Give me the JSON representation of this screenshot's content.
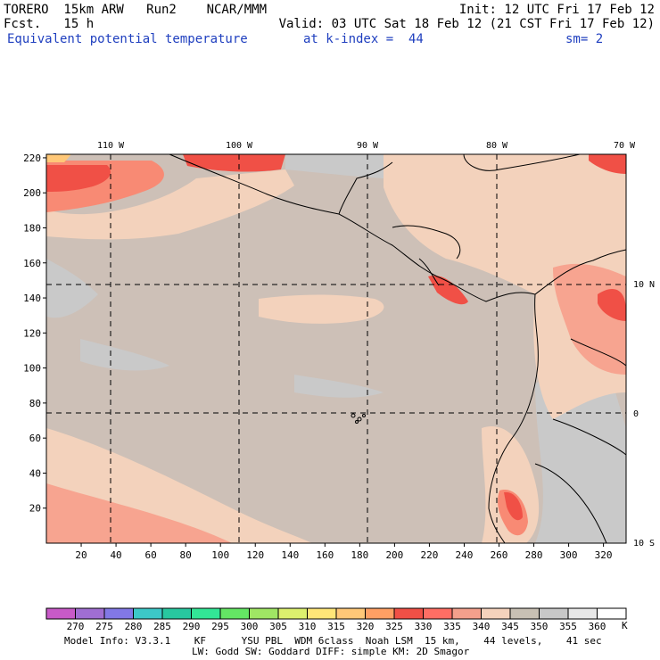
{
  "header": {
    "left_line1": "TORERO  15km ARW   Run2    NCAR/MMM",
    "left_line2": "Fcst.   15 h",
    "right_line1": "Init: 12 UTC Fri 17 Feb 12",
    "right_line2": "Valid: 03 UTC Sat 18 Feb 12 (21 CST Fri 17 Feb 12)",
    "field": "Equivalent potential temperature",
    "level": "at k-index =  44",
    "smoothing": "sm= 2"
  },
  "map": {
    "top_longitude_labels": [
      "110 W",
      "100 W",
      "90 W",
      "80 W",
      "70 W"
    ],
    "right_latitude_labels": [
      "10 N",
      "0",
      "10 S"
    ],
    "left_grid_labels": [
      "220",
      "200",
      "180",
      "160",
      "140",
      "120",
      "100",
      "80",
      "60",
      "40",
      "20"
    ],
    "bottom_grid_labels": [
      "20",
      "40",
      "60",
      "80",
      "100",
      "120",
      "140",
      "160",
      "180",
      "200",
      "220",
      "240",
      "260",
      "280",
      "300",
      "320"
    ],
    "x_grid_range": [
      0,
      333
    ],
    "y_grid_range": [
      0,
      222
    ],
    "background_color": "#cdc0b7"
  },
  "colorbar": {
    "levels": [
      "270",
      "275",
      "280",
      "285",
      "290",
      "295",
      "300",
      "305",
      "310",
      "315",
      "320",
      "325",
      "330",
      "335",
      "340",
      "345",
      "350",
      "355",
      "360"
    ],
    "unit": "K",
    "colors": [
      "#c85ac8",
      "#a06ed2",
      "#8278e6",
      "#3cc8c8",
      "#28c8a0",
      "#32e696",
      "#64e664",
      "#a0e664",
      "#dcf06e",
      "#ffe678",
      "#ffc878",
      "#ffa064",
      "#f05046",
      "#ff6e64",
      "#f4a08c",
      "#f5d2bc",
      "#c8c0b4",
      "#c8c8c8",
      "#e8e8e8",
      "#ffffff"
    ]
  },
  "footer": {
    "line1": "Model Info: V3.3.1    KF      YSU PBL  WDM 6class  Noah LSM  15 km,    44 levels,    41 sec",
    "line2": "LW: Godd SW: Goddard DIFF: simple KM: 2D Smagor"
  }
}
